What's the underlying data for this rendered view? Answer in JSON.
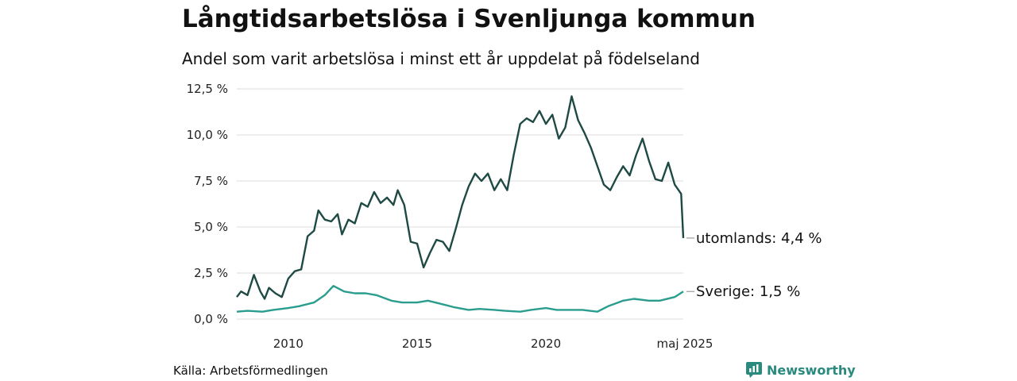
{
  "title": "Långtidsarbetslösa i Svenljunga kommun",
  "subtitle": "Andel som varit arbetslösa i minst ett år uppdelat på födelseland",
  "source": "Källa: Arbetsförmedlingen",
  "brand": {
    "name": "Newsworthy",
    "icon": "newsworthy-logo-icon",
    "color": "#2a8a7e"
  },
  "chart_data": {
    "type": "line",
    "title": "Långtidsarbetslösa i Svenljunga kommun",
    "subtitle": "Andel som varit arbetslösa i minst ett år uppdelat på födelseland",
    "ylim": [
      0,
      12.5
    ],
    "y_ticks": [
      0,
      2.5,
      5,
      7.5,
      10,
      12.5
    ],
    "y_tick_labels": [
      "0,0 %",
      "2,5 %",
      "5,0 %",
      "7,5 %",
      "10,0 %",
      "12,5 %"
    ],
    "xlim": [
      "2008-01",
      "2025-05"
    ],
    "x_ticks": [
      "2010-01",
      "2015-01",
      "2020-01",
      "2025-05"
    ],
    "x_tick_labels": [
      "2010",
      "2015",
      "2020",
      "maj 2025"
    ],
    "grid": "horizontal",
    "legend": "end-labels",
    "series": [
      {
        "name": "utomlands",
        "end_label": "utomlands: 4,4 %",
        "color": "#1f4a44",
        "points": [
          [
            "2008-01",
            1.2
          ],
          [
            "2008-03",
            1.5
          ],
          [
            "2008-06",
            1.3
          ],
          [
            "2008-09",
            2.4
          ],
          [
            "2008-12",
            1.5
          ],
          [
            "2009-02",
            1.1
          ],
          [
            "2009-04",
            1.7
          ],
          [
            "2009-07",
            1.4
          ],
          [
            "2009-10",
            1.2
          ],
          [
            "2010-01",
            2.2
          ],
          [
            "2010-04",
            2.6
          ],
          [
            "2010-07",
            2.7
          ],
          [
            "2010-10",
            4.5
          ],
          [
            "2011-01",
            4.8
          ],
          [
            "2011-03",
            5.9
          ],
          [
            "2011-06",
            5.4
          ],
          [
            "2011-09",
            5.3
          ],
          [
            "2011-12",
            5.7
          ],
          [
            "2012-02",
            4.6
          ],
          [
            "2012-05",
            5.4
          ],
          [
            "2012-08",
            5.2
          ],
          [
            "2012-11",
            6.3
          ],
          [
            "2013-02",
            6.1
          ],
          [
            "2013-05",
            6.9
          ],
          [
            "2013-08",
            6.3
          ],
          [
            "2013-11",
            6.6
          ],
          [
            "2014-02",
            6.2
          ],
          [
            "2014-04",
            7.0
          ],
          [
            "2014-07",
            6.2
          ],
          [
            "2014-10",
            4.2
          ],
          [
            "2015-01",
            4.1
          ],
          [
            "2015-04",
            2.8
          ],
          [
            "2015-07",
            3.6
          ],
          [
            "2015-10",
            4.3
          ],
          [
            "2016-01",
            4.2
          ],
          [
            "2016-04",
            3.7
          ],
          [
            "2016-07",
            4.9
          ],
          [
            "2016-10",
            6.2
          ],
          [
            "2017-01",
            7.2
          ],
          [
            "2017-04",
            7.9
          ],
          [
            "2017-07",
            7.5
          ],
          [
            "2017-10",
            7.9
          ],
          [
            "2018-01",
            7.0
          ],
          [
            "2018-04",
            7.6
          ],
          [
            "2018-07",
            7.0
          ],
          [
            "2018-10",
            8.9
          ],
          [
            "2019-01",
            10.6
          ],
          [
            "2019-04",
            10.9
          ],
          [
            "2019-07",
            10.7
          ],
          [
            "2019-10",
            11.3
          ],
          [
            "2020-01",
            10.6
          ],
          [
            "2020-04",
            11.1
          ],
          [
            "2020-07",
            9.8
          ],
          [
            "2020-10",
            10.4
          ],
          [
            "2021-01",
            12.1
          ],
          [
            "2021-04",
            10.8
          ],
          [
            "2021-07",
            10.1
          ],
          [
            "2021-10",
            9.3
          ],
          [
            "2022-01",
            8.3
          ],
          [
            "2022-04",
            7.3
          ],
          [
            "2022-07",
            7.0
          ],
          [
            "2022-10",
            7.7
          ],
          [
            "2023-01",
            8.3
          ],
          [
            "2023-04",
            7.8
          ],
          [
            "2023-07",
            8.9
          ],
          [
            "2023-10",
            9.8
          ],
          [
            "2024-01",
            8.6
          ],
          [
            "2024-04",
            7.6
          ],
          [
            "2024-07",
            7.5
          ],
          [
            "2024-10",
            8.5
          ],
          [
            "2025-01",
            7.3
          ],
          [
            "2025-04",
            6.8
          ],
          [
            "2025-05",
            4.4
          ]
        ]
      },
      {
        "name": "Sverige",
        "end_label": "Sverige: 1,5 %",
        "color": "#2a9d8f",
        "points": [
          [
            "2008-01",
            0.4
          ],
          [
            "2008-06",
            0.45
          ],
          [
            "2009-01",
            0.4
          ],
          [
            "2009-06",
            0.5
          ],
          [
            "2010-01",
            0.6
          ],
          [
            "2010-06",
            0.7
          ],
          [
            "2011-01",
            0.9
          ],
          [
            "2011-06",
            1.3
          ],
          [
            "2011-10",
            1.8
          ],
          [
            "2012-03",
            1.5
          ],
          [
            "2012-08",
            1.4
          ],
          [
            "2013-01",
            1.4
          ],
          [
            "2013-06",
            1.3
          ],
          [
            "2014-01",
            1.0
          ],
          [
            "2014-06",
            0.9
          ],
          [
            "2015-01",
            0.9
          ],
          [
            "2015-06",
            1.0
          ],
          [
            "2016-01",
            0.8
          ],
          [
            "2016-06",
            0.65
          ],
          [
            "2017-01",
            0.5
          ],
          [
            "2017-06",
            0.55
          ],
          [
            "2018-01",
            0.5
          ],
          [
            "2018-06",
            0.45
          ],
          [
            "2019-01",
            0.4
          ],
          [
            "2019-06",
            0.5
          ],
          [
            "2020-01",
            0.6
          ],
          [
            "2020-06",
            0.5
          ],
          [
            "2021-01",
            0.5
          ],
          [
            "2021-06",
            0.5
          ],
          [
            "2022-01",
            0.4
          ],
          [
            "2022-06",
            0.7
          ],
          [
            "2023-01",
            1.0
          ],
          [
            "2023-06",
            1.1
          ],
          [
            "2024-01",
            1.0
          ],
          [
            "2024-06",
            1.0
          ],
          [
            "2025-01",
            1.2
          ],
          [
            "2025-05",
            1.5
          ]
        ]
      }
    ]
  }
}
